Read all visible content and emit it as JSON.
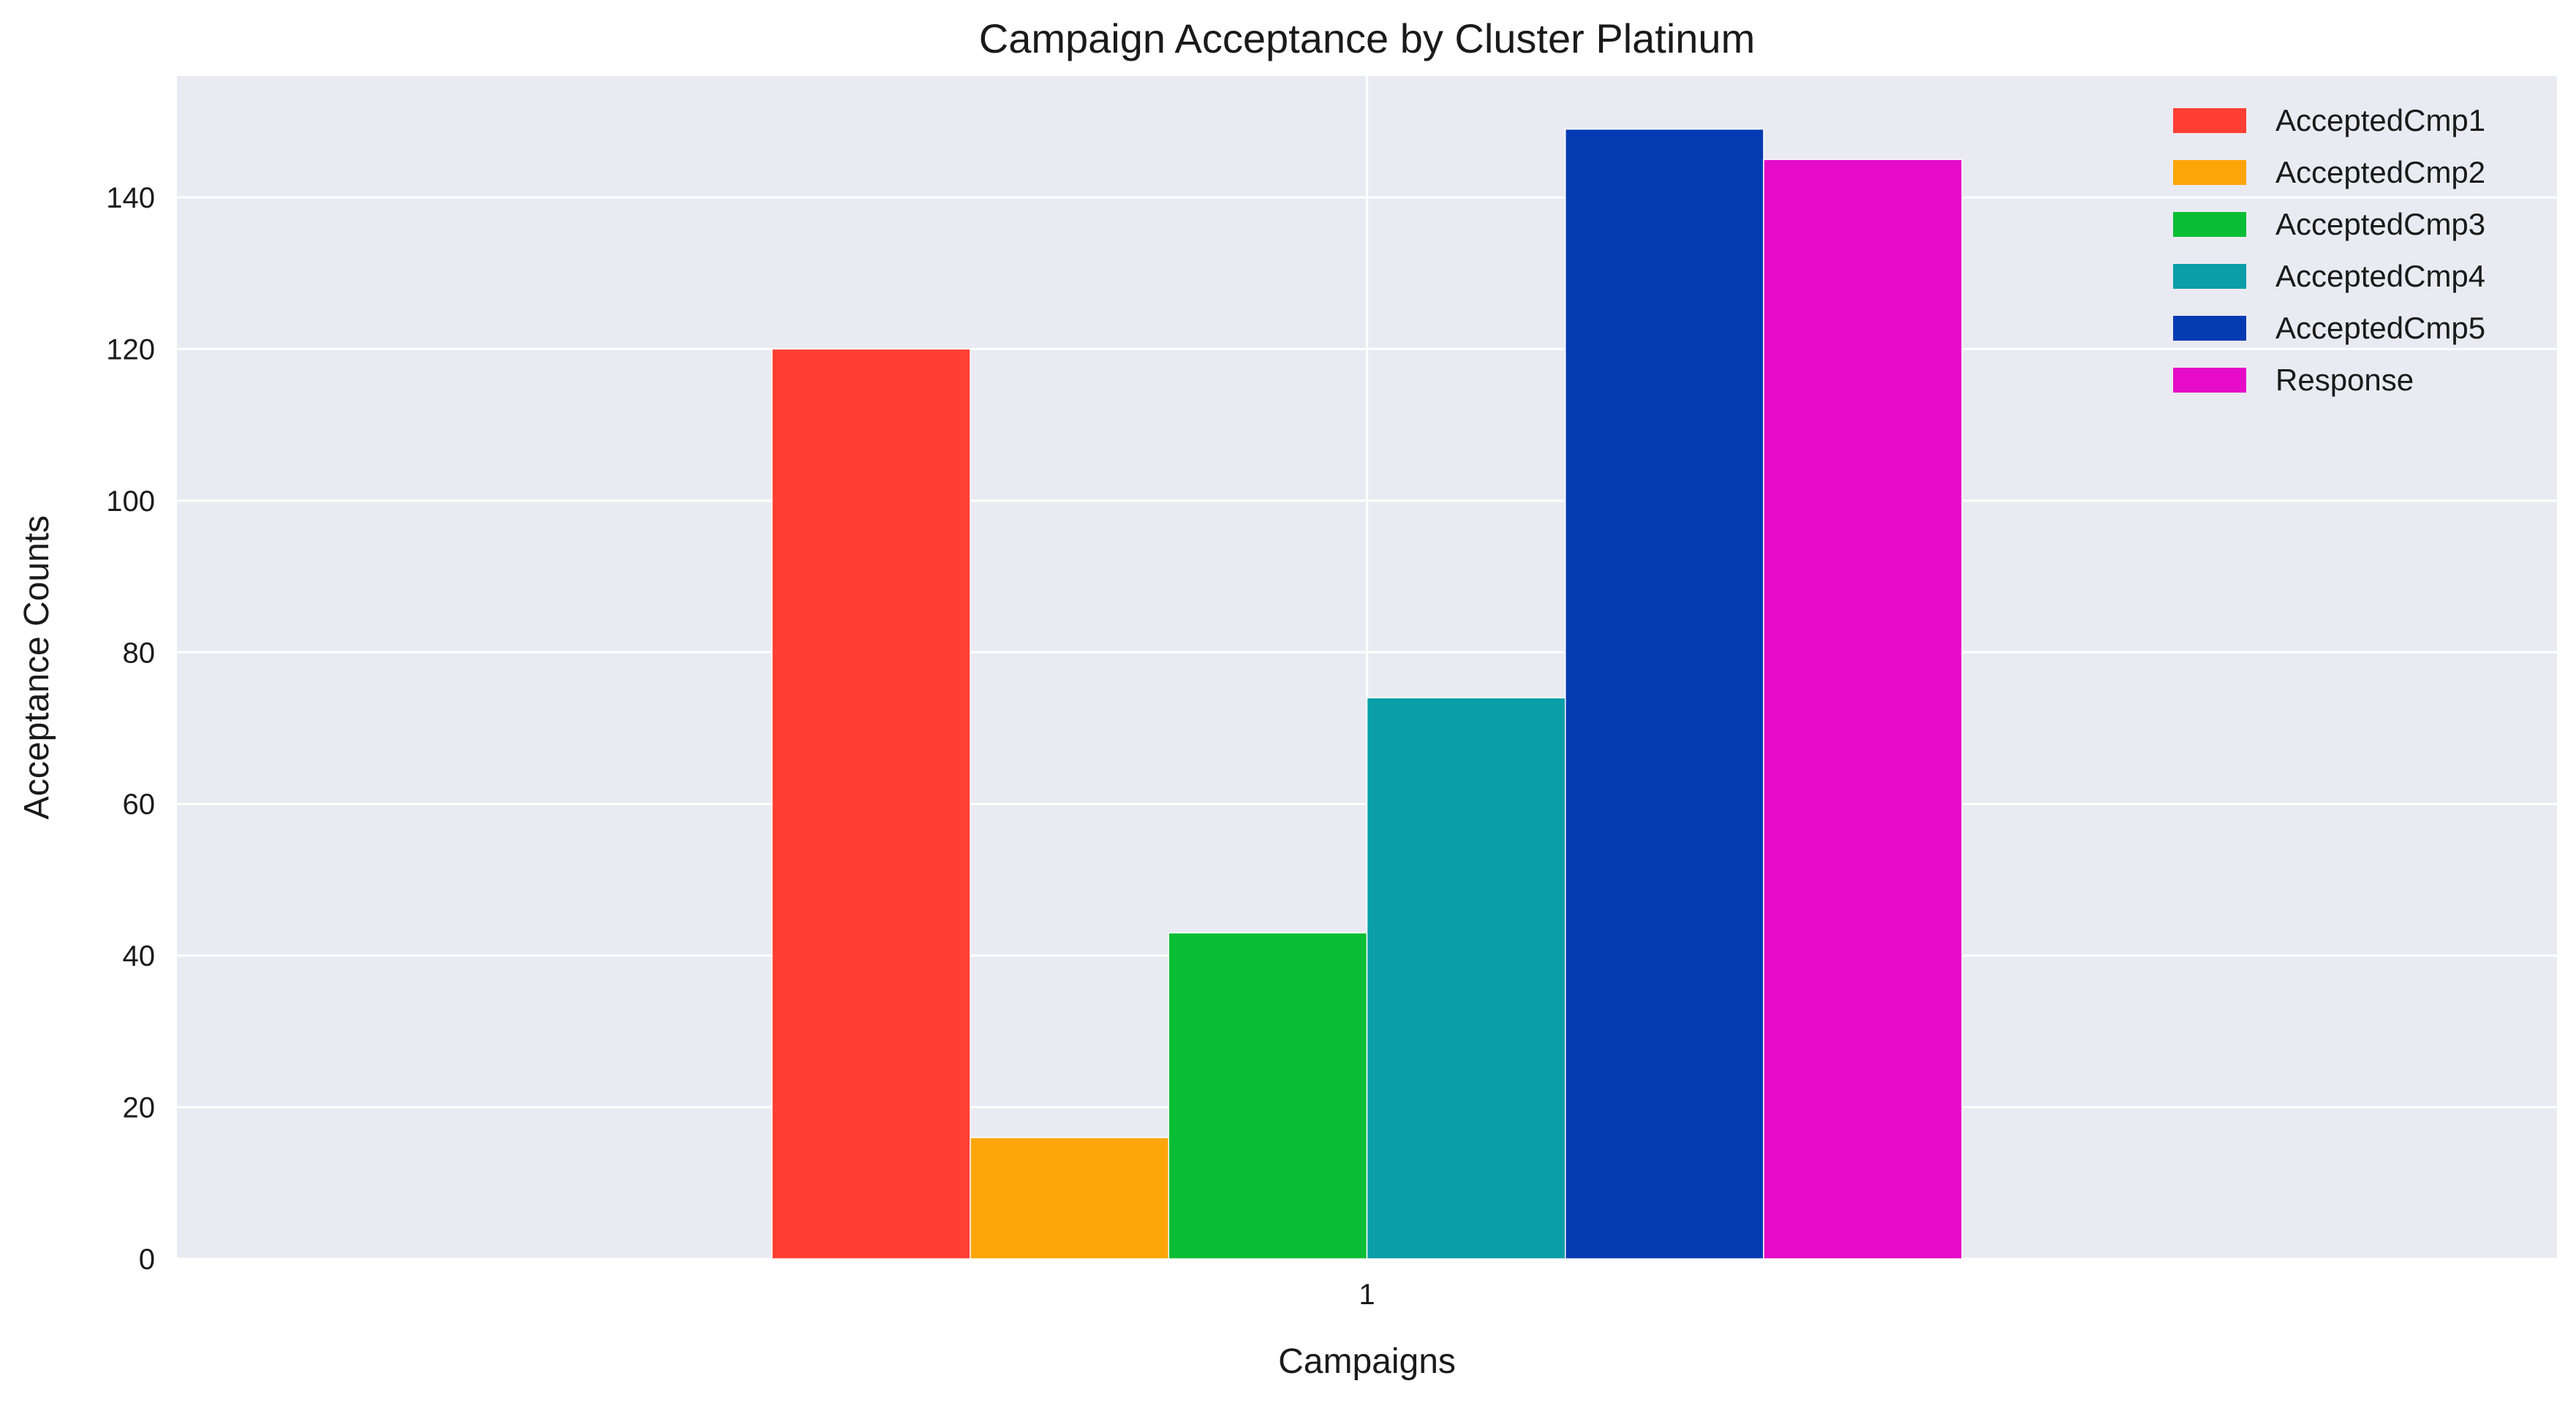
{
  "chart_data": {
    "type": "bar",
    "title": "Campaign Acceptance by Cluster Platinum",
    "xlabel": "Campaigns",
    "ylabel": "Acceptance Counts",
    "categories": [
      "1"
    ],
    "ylim": [
      0,
      156
    ],
    "yticks": [
      0,
      20,
      40,
      60,
      80,
      100,
      120,
      140
    ],
    "grid": true,
    "legend_position": "top-right",
    "background_color": "#eaeaf2",
    "grid_color": "#ffffff",
    "series": [
      {
        "name": "AcceptedCmp1",
        "values": [
          120
        ],
        "color": "#ff3f33"
      },
      {
        "name": "AcceptedCmp2",
        "values": [
          16
        ],
        "color": "#fca509"
      },
      {
        "name": "AcceptedCmp3",
        "values": [
          43
        ],
        "color": "#09be34"
      },
      {
        "name": "AcceptedCmp4",
        "values": [
          74
        ],
        "color": "#099ea8"
      },
      {
        "name": "AcceptedCmp5",
        "values": [
          149
        ],
        "color": "#053bb2"
      },
      {
        "name": "Response",
        "values": [
          145
        ],
        "color": "#e50bc7"
      }
    ]
  }
}
